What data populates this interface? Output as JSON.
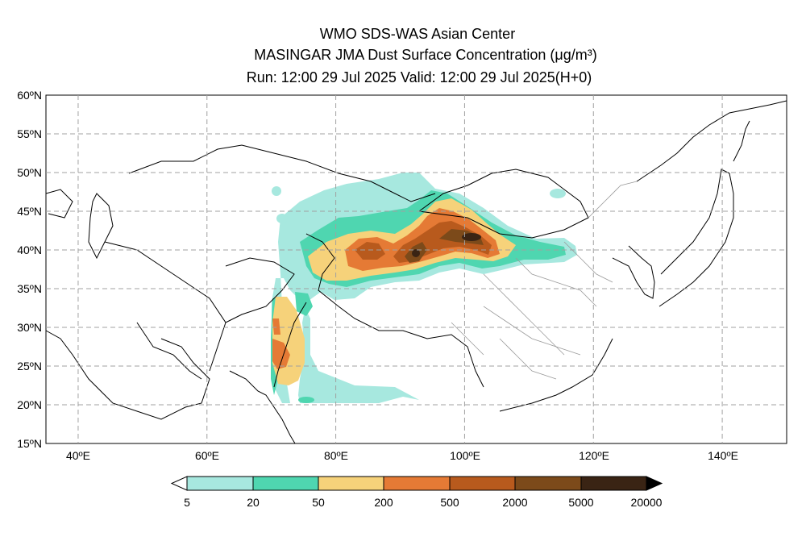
{
  "header": {
    "line1": "WMO SDS-WAS Asian Center",
    "line2": "MASINGAR JMA Dust Surface Concentration (μg/m³)",
    "line3": "Run: 12:00 29 Jul 2025     Valid: 12:00 29 Jul 2025(H+0)"
  },
  "axes": {
    "lat_labels": [
      "60ºN",
      "55ºN",
      "50ºN",
      "45ºN",
      "40ºN",
      "35ºN",
      "30ºN",
      "25ºN",
      "20ºN",
      "15ºN"
    ],
    "lon_labels": [
      "40ºE",
      "60ºE",
      "80ºE",
      "100ºE",
      "120ºE",
      "140ºE"
    ],
    "lat_range": [
      15,
      60
    ],
    "lon_range": [
      35,
      150
    ],
    "grid": true
  },
  "colorbar": {
    "labels": [
      "5",
      "20",
      "50",
      "200",
      "500",
      "2000",
      "5000",
      "20000"
    ],
    "colors": [
      "#a7e8df",
      "#4fd6b0",
      "#f6d27a",
      "#e57a35",
      "#b85a1d",
      "#7c4a1a",
      "#3a2414"
    ]
  },
  "colors": {
    "level1": "#a7e8df",
    "level2": "#4fd6b0",
    "level3": "#f6d27a",
    "level4": "#e57a35",
    "level5": "#b85a1d",
    "level6": "#7c4a1a",
    "level7": "#3a2414",
    "gridline": "#a0a0a0"
  }
}
